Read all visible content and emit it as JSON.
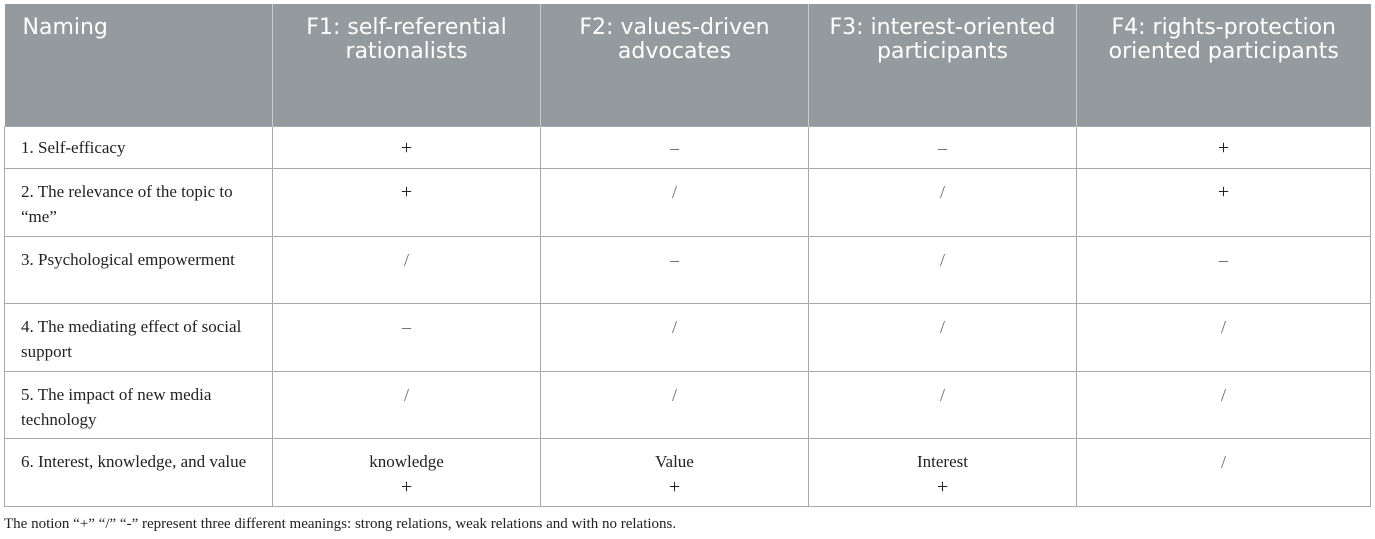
{
  "table": {
    "headers": [
      "Naming",
      "F1: self-referential rationalists",
      "F2: values-driven advocates",
      "F3: interest-oriented participants",
      "F4: rights-protection oriented participants"
    ],
    "rows": [
      {
        "label": "1. Self-efficacy",
        "cells": [
          {
            "text": "",
            "sym": "+"
          },
          {
            "text": "",
            "sym": "–"
          },
          {
            "text": "",
            "sym": "–"
          },
          {
            "text": "",
            "sym": "+"
          }
        ]
      },
      {
        "label": "2. The relevance of the topic to “me”",
        "cells": [
          {
            "text": "",
            "sym": "+"
          },
          {
            "text": "",
            "sym": "/"
          },
          {
            "text": "",
            "sym": "/"
          },
          {
            "text": "",
            "sym": "+"
          }
        ]
      },
      {
        "label": "3. Psychological empowerment",
        "cells": [
          {
            "text": "",
            "sym": "/"
          },
          {
            "text": "",
            "sym": "–"
          },
          {
            "text": "",
            "sym": "/"
          },
          {
            "text": "",
            "sym": "–"
          }
        ]
      },
      {
        "label": "4. The mediating effect of social support",
        "cells": [
          {
            "text": "",
            "sym": "–"
          },
          {
            "text": "",
            "sym": "/"
          },
          {
            "text": "",
            "sym": "/"
          },
          {
            "text": "",
            "sym": "/"
          }
        ]
      },
      {
        "label": "5. The impact of new media technology",
        "cells": [
          {
            "text": "",
            "sym": "/"
          },
          {
            "text": "",
            "sym": "/"
          },
          {
            "text": "",
            "sym": "/"
          },
          {
            "text": "",
            "sym": "/"
          }
        ]
      },
      {
        "label": "6. Interest, knowledge, and value",
        "cells": [
          {
            "text": "knowledge",
            "sym": "+"
          },
          {
            "text": "Value",
            "sym": "+"
          },
          {
            "text": "Interest",
            "sym": "+"
          },
          {
            "text": "",
            "sym": "/"
          }
        ]
      }
    ]
  },
  "footnote": "The notion “+” “/” “-” represent three different meanings: strong relations, weak relations and with no relations.",
  "colors": {
    "header_bg": "#949a9d",
    "header_text": "#ffffff",
    "border": "#a9a9a9"
  }
}
